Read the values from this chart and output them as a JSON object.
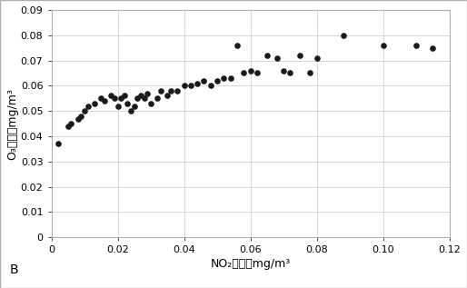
{
  "x": [
    0.002,
    0.005,
    0.006,
    0.008,
    0.009,
    0.01,
    0.011,
    0.013,
    0.015,
    0.016,
    0.018,
    0.019,
    0.02,
    0.021,
    0.022,
    0.023,
    0.024,
    0.025,
    0.026,
    0.027,
    0.028,
    0.029,
    0.03,
    0.032,
    0.033,
    0.035,
    0.036,
    0.038,
    0.04,
    0.042,
    0.044,
    0.046,
    0.048,
    0.05,
    0.052,
    0.054,
    0.056,
    0.058,
    0.06,
    0.062,
    0.065,
    0.068,
    0.07,
    0.072,
    0.075,
    0.078,
    0.08,
    0.088,
    0.1,
    0.11,
    0.115
  ],
  "y": [
    0.037,
    0.044,
    0.045,
    0.047,
    0.048,
    0.05,
    0.052,
    0.053,
    0.055,
    0.054,
    0.056,
    0.055,
    0.052,
    0.055,
    0.056,
    0.053,
    0.05,
    0.052,
    0.055,
    0.056,
    0.055,
    0.057,
    0.053,
    0.055,
    0.058,
    0.056,
    0.058,
    0.058,
    0.06,
    0.06,
    0.061,
    0.062,
    0.06,
    0.062,
    0.063,
    0.063,
    0.076,
    0.065,
    0.066,
    0.065,
    0.072,
    0.071,
    0.066,
    0.065,
    0.072,
    0.065,
    0.071,
    0.08,
    0.076,
    0.076,
    0.075
  ],
  "dot_color": "#1a1a1a",
  "dot_size": 14,
  "xlabel": "NO₂浓度，mg/m³",
  "ylabel": "O₃浓度，mg/m³",
  "xlim": [
    0,
    0.12
  ],
  "ylim": [
    0,
    0.09
  ],
  "xticks": [
    0,
    0.02,
    0.04,
    0.06,
    0.08,
    0.1,
    0.12
  ],
  "yticks": [
    0,
    0.01,
    0.02,
    0.03,
    0.04,
    0.05,
    0.06,
    0.07,
    0.08,
    0.09
  ],
  "label_B": "B",
  "bg_color": "#ffffff",
  "grid_color": "#c8c8c8",
  "border_color": "#b0b0b0",
  "font_size_label": 9,
  "font_size_tick": 8,
  "font_size_B": 10
}
